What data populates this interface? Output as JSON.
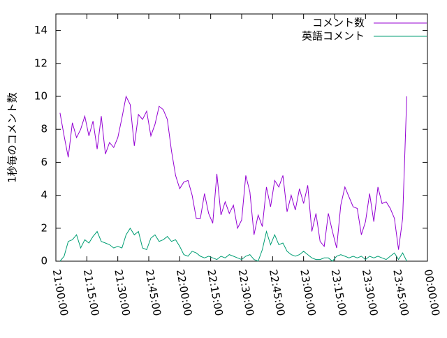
{
  "chart_data": {
    "type": "line",
    "ylabel": "1秒毎のコメント数",
    "x": [
      2,
      4,
      6,
      8,
      10,
      12,
      14,
      16,
      18,
      20,
      22,
      24,
      26,
      28,
      30,
      32,
      34,
      36,
      38,
      40,
      42,
      44,
      46,
      48,
      50,
      52,
      54,
      56,
      58,
      60,
      62,
      64,
      66,
      68,
      70,
      72,
      74,
      76,
      78,
      80,
      82,
      84,
      86,
      88,
      90,
      92,
      94,
      96,
      98,
      100,
      102,
      104,
      106,
      108,
      110,
      112,
      114,
      116,
      118,
      120,
      122,
      124,
      126,
      128,
      130,
      132,
      134,
      136,
      138,
      140,
      142,
      144,
      146,
      148,
      150,
      152,
      154,
      156,
      158,
      160,
      162,
      164,
      166,
      168,
      170
    ],
    "series": [
      {
        "name": "コメント数",
        "color": "#9400d3",
        "values": [
          9.0,
          7.6,
          6.3,
          8.4,
          7.5,
          8.0,
          8.8,
          7.6,
          8.5,
          6.8,
          8.8,
          6.5,
          7.2,
          6.9,
          7.5,
          8.7,
          10.0,
          9.5,
          7.0,
          8.9,
          8.6,
          9.1,
          7.6,
          8.3,
          9.4,
          9.2,
          8.6,
          6.7,
          5.2,
          4.4,
          4.8,
          4.9,
          4.0,
          2.6,
          2.6,
          4.1,
          2.9,
          2.3,
          5.3,
          2.8,
          3.6,
          2.9,
          3.4,
          2.0,
          2.5,
          5.2,
          4.2,
          1.6,
          2.8,
          2.1,
          4.5,
          3.3,
          4.9,
          4.5,
          5.2,
          3.0,
          4.0,
          3.1,
          4.4,
          3.5,
          4.6,
          1.8,
          2.9,
          1.2,
          0.9,
          2.9,
          1.8,
          0.8,
          3.4,
          4.5,
          3.9,
          3.3,
          3.2,
          1.6,
          2.4,
          4.1,
          2.4,
          4.5,
          3.5,
          3.6,
          3.2,
          2.6,
          0.7,
          2.6,
          10.0
        ]
      },
      {
        "name": "英語コメント",
        "color": "#009e73",
        "values": [
          0.0,
          0.3,
          1.2,
          1.3,
          1.6,
          0.8,
          1.3,
          1.1,
          1.5,
          1.8,
          1.2,
          1.1,
          1.0,
          0.8,
          0.9,
          0.8,
          1.6,
          2.0,
          1.6,
          1.8,
          0.8,
          0.7,
          1.4,
          1.6,
          1.2,
          1.3,
          1.5,
          1.2,
          1.3,
          0.9,
          0.4,
          0.3,
          0.6,
          0.5,
          0.3,
          0.2,
          0.3,
          0.2,
          0.1,
          0.3,
          0.2,
          0.4,
          0.3,
          0.2,
          0.1,
          0.3,
          0.4,
          0.1,
          0.0,
          0.7,
          1.8,
          1.0,
          1.6,
          1.0,
          1.1,
          0.6,
          0.4,
          0.3,
          0.4,
          0.6,
          0.4,
          0.2,
          0.1,
          0.1,
          0.2,
          0.2,
          0.0,
          0.3,
          0.4,
          0.3,
          0.2,
          0.3,
          0.2,
          0.3,
          0.1,
          0.3,
          0.2,
          0.3,
          0.2,
          0.1,
          0.3,
          0.5,
          0.1,
          0.5,
          0.0
        ]
      }
    ],
    "xlim": [
      0,
      180
    ],
    "xticks": [
      {
        "value": 0,
        "label": "21:00:00"
      },
      {
        "value": 15,
        "label": "21:15:00"
      },
      {
        "value": 30,
        "label": "21:30:00"
      },
      {
        "value": 45,
        "label": "21:45:00"
      },
      {
        "value": 60,
        "label": "22:00:00"
      },
      {
        "value": 75,
        "label": "22:15:00"
      },
      {
        "value": 90,
        "label": "22:30:00"
      },
      {
        "value": 105,
        "label": "22:45:00"
      },
      {
        "value": 120,
        "label": "23:00:00"
      },
      {
        "value": 135,
        "label": "23:15:00"
      },
      {
        "value": 150,
        "label": "23:30:00"
      },
      {
        "value": 165,
        "label": "23:45:00"
      },
      {
        "value": 180,
        "label": "00:00:00"
      }
    ],
    "ylim": [
      0,
      15
    ],
    "yticks": [
      0,
      2,
      4,
      6,
      8,
      10,
      12,
      14
    ],
    "legend": "top-right",
    "grid": false
  }
}
